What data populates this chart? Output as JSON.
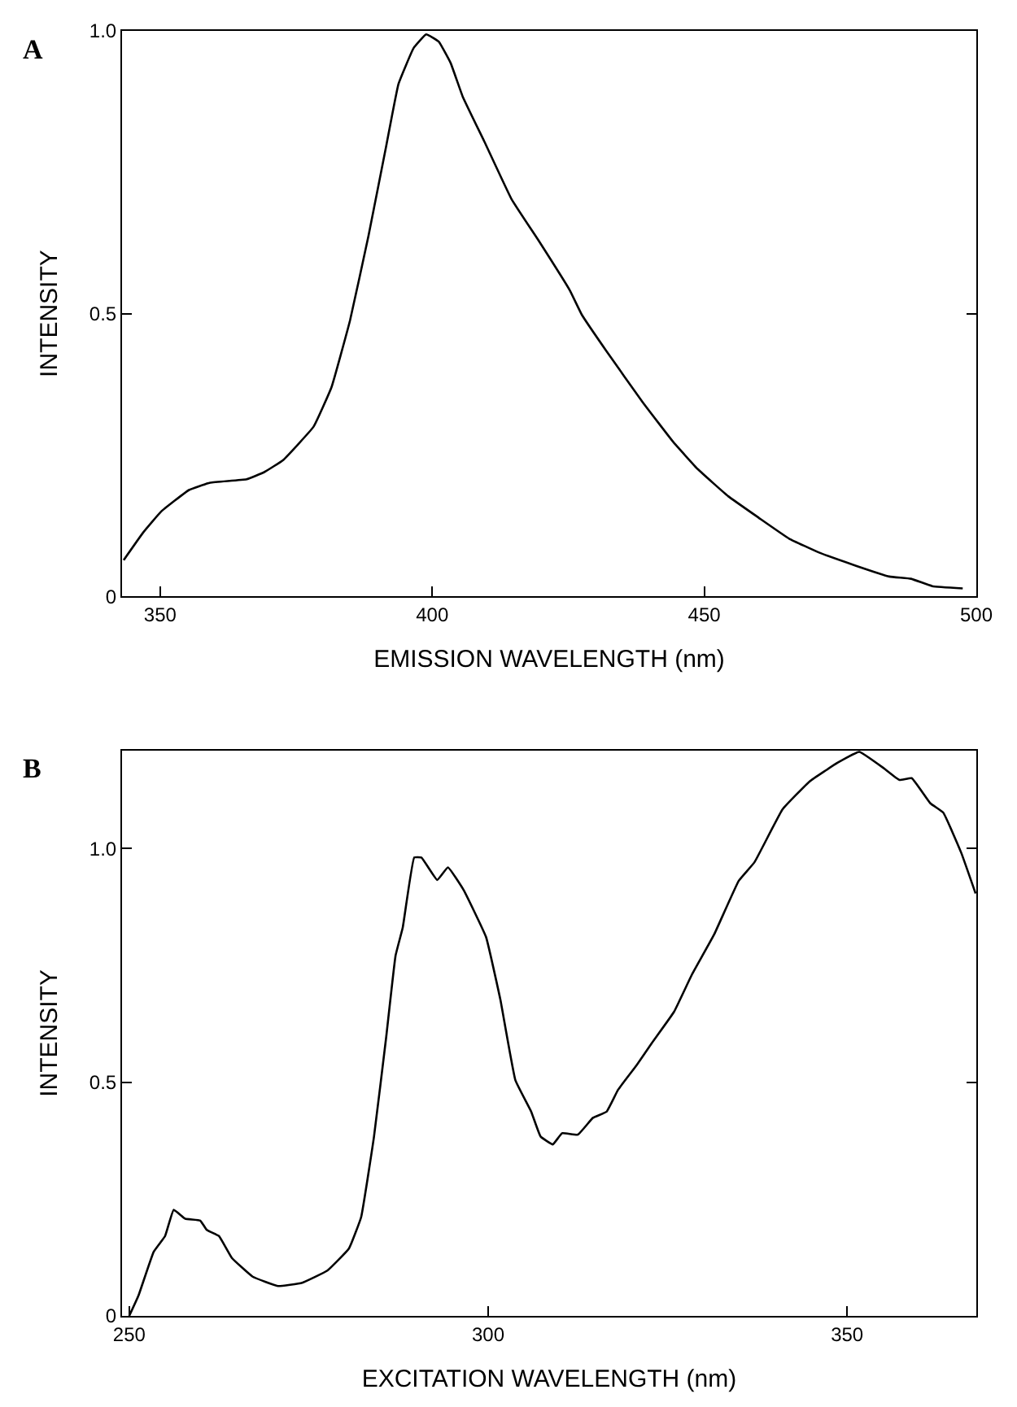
{
  "chart_data": [
    {
      "type": "line",
      "title": "A",
      "xlabel": "EMISSION WAVELENGTH (nm)",
      "ylabel": "INTENSITY",
      "xlim": [
        343,
        500
      ],
      "ylim": [
        0,
        1.0
      ],
      "xticks": [
        350,
        400,
        450,
        500
      ],
      "yticks": [
        0,
        0.5,
        {
          "value": 1.0,
          "label": "1.0"
        }
      ],
      "marker": "none",
      "line_style": "solid",
      "series": [
        {
          "color": "#000000",
          "x": [
            343.3,
            346.9,
            350.2,
            355.3,
            359.2,
            365.9,
            369.2,
            372.6,
            378.2,
            381.5,
            384.9,
            388.3,
            391.6,
            393.8,
            396.6,
            398.9,
            401.2,
            403.4,
            405.6,
            409.6,
            414.6,
            419.7,
            425.3,
            427.5,
            432.0,
            438.7,
            444.3,
            448.8,
            454.4,
            460.0,
            465.6,
            471.2,
            477.9,
            484.0,
            488.0,
            491.9,
            497.5
          ],
          "values": [
            0.064,
            0.113,
            0.15,
            0.188,
            0.201,
            0.207,
            0.22,
            0.241,
            0.3,
            0.37,
            0.488,
            0.638,
            0.799,
            0.906,
            0.97,
            0.994,
            0.981,
            0.943,
            0.884,
            0.804,
            0.702,
            0.627,
            0.541,
            0.498,
            0.434,
            0.343,
            0.273,
            0.225,
            0.177,
            0.139,
            0.102,
            0.077,
            0.054,
            0.035,
            0.031,
            0.018,
            0.014
          ]
        }
      ]
    },
    {
      "type": "line",
      "title": "B",
      "xlabel": "EXCITATION WAVELENGTH (nm)",
      "ylabel": "INTENSITY",
      "xlim": [
        249,
        368
      ],
      "ylim": [
        0,
        1.21
      ],
      "xticks": [
        250,
        300,
        350
      ],
      "yticks": [
        0,
        0.5,
        {
          "value": 1.0,
          "label": "1.0"
        }
      ],
      "marker": "none",
      "line_style": "solid",
      "series": [
        {
          "color": "#000000",
          "x": [
            250.0,
            251.3,
            253.4,
            255.0,
            256.2,
            257.8,
            259.9,
            260.8,
            262.5,
            264.3,
            267.2,
            270.7,
            274.1,
            277.6,
            280.6,
            282.3,
            284.1,
            285.8,
            287.1,
            288.1,
            289.7,
            290.7,
            292.9,
            294.4,
            296.6,
            299.7,
            301.7,
            303.8,
            306.0,
            307.3,
            309.0,
            310.3,
            312.5,
            314.6,
            316.5,
            318.1,
            320.7,
            322.8,
            325.9,
            328.4,
            331.5,
            334.9,
            337.1,
            341.0,
            344.8,
            348.7,
            351.7,
            355.2,
            357.3,
            359.0,
            361.6,
            363.4,
            365.9,
            367.9
          ],
          "values": [
            0,
            0.044,
            0.137,
            0.171,
            0.227,
            0.208,
            0.204,
            0.184,
            0.171,
            0.124,
            0.084,
            0.064,
            0.071,
            0.097,
            0.144,
            0.211,
            0.384,
            0.597,
            0.771,
            0.831,
            0.981,
            0.981,
            0.933,
            0.96,
            0.911,
            0.811,
            0.677,
            0.504,
            0.437,
            0.384,
            0.367,
            0.391,
            0.388,
            0.424,
            0.437,
            0.484,
            0.537,
            0.584,
            0.651,
            0.731,
            0.817,
            0.931,
            0.971,
            1.084,
            1.144,
            1.184,
            1.207,
            1.171,
            1.147,
            1.151,
            1.097,
            1.077,
            0.991,
            0.904
          ]
        }
      ]
    }
  ]
}
